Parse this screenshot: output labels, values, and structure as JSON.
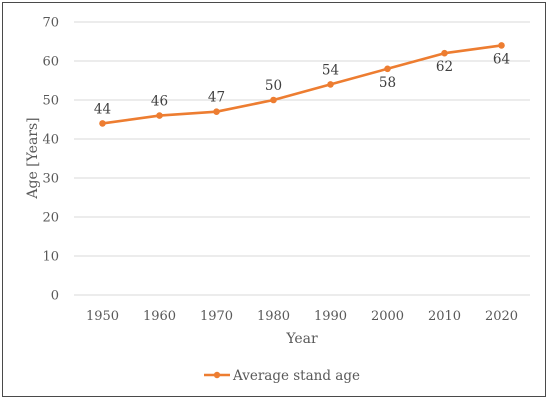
{
  "chart_data": {
    "type": "line",
    "title": "",
    "xlabel": "Year",
    "ylabel": "Age [Years]",
    "ylim": [
      0,
      70
    ],
    "yticks": [
      0,
      10,
      20,
      30,
      40,
      50,
      60,
      70
    ],
    "grid": true,
    "legend_position": "bottom",
    "categories": [
      "1950",
      "1960",
      "1970",
      "1980",
      "1990",
      "2000",
      "2010",
      "2020"
    ],
    "series": [
      {
        "name": "Average stand age",
        "color": "#ED7D31",
        "values": [
          44,
          46,
          47,
          50,
          54,
          58,
          62,
          64
        ],
        "data_labels": [
          "44",
          "46",
          "47",
          "50",
          "54",
          "58",
          "62",
          "64"
        ],
        "label_positions": [
          "above",
          "above",
          "above",
          "above",
          "above",
          "below",
          "below",
          "below"
        ]
      }
    ]
  }
}
